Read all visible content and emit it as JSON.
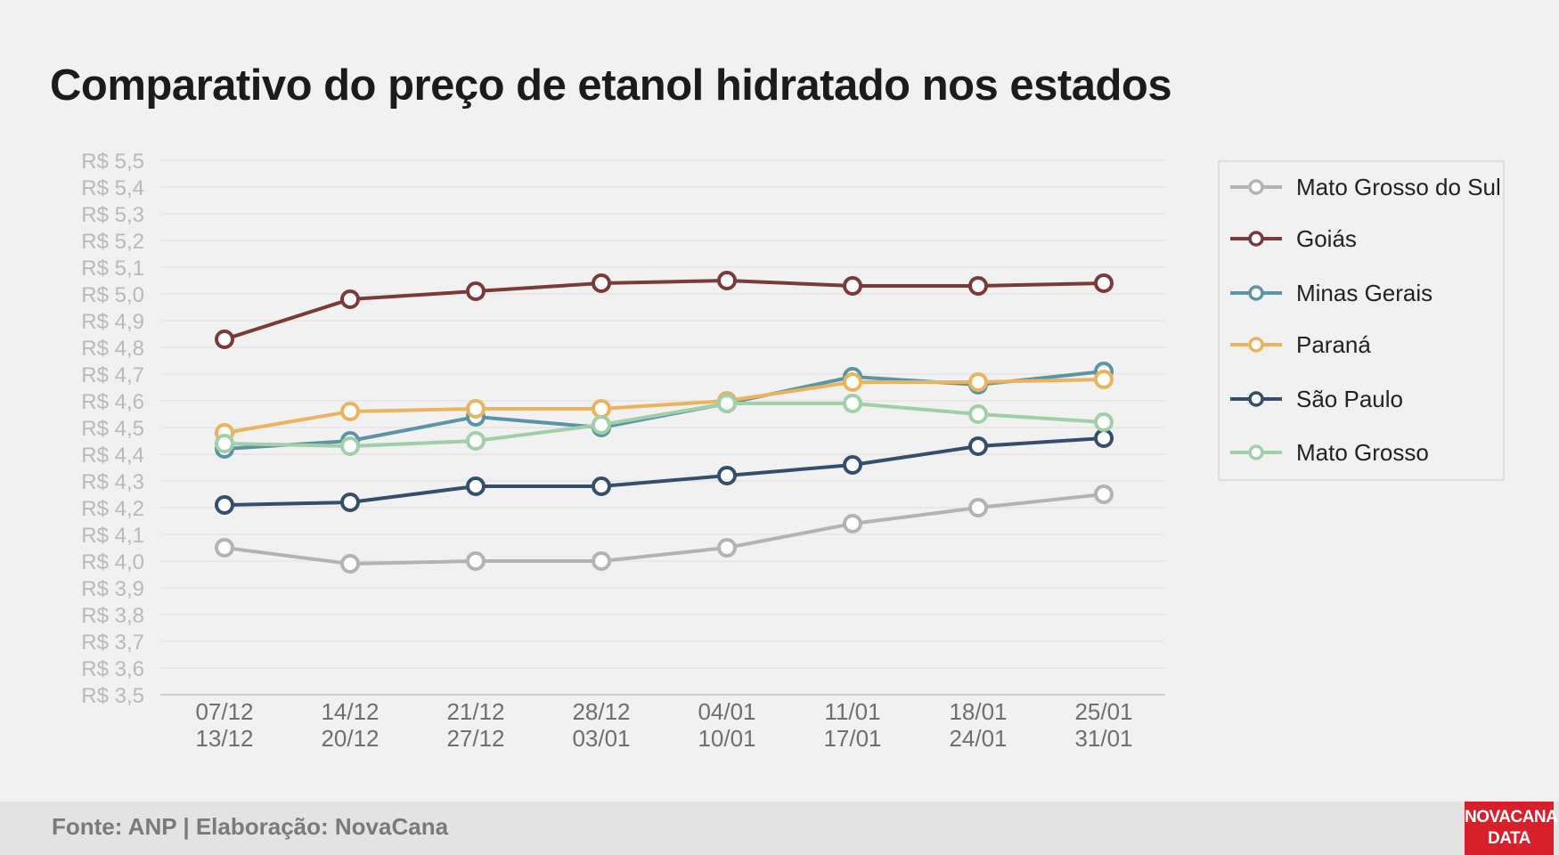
{
  "title": "Comparativo do preço de etanol hidratado nos estados",
  "footer": {
    "source": "Fonte: ANP | Elaboração: NovaCana",
    "logo_line1": "NOVACANA",
    "logo_line2": "DATA"
  },
  "chart_data": {
    "type": "line",
    "title": "Comparativo do preço de etanol hidratado nos estados",
    "xlabel": "",
    "ylabel": "",
    "categories": [
      [
        "07/12",
        "13/12"
      ],
      [
        "14/12",
        "20/12"
      ],
      [
        "21/12",
        "27/12"
      ],
      [
        "28/12",
        "03/01"
      ],
      [
        "04/01",
        "10/01"
      ],
      [
        "11/01",
        "17/01"
      ],
      [
        "18/01",
        "24/01"
      ],
      [
        "25/01",
        "31/01"
      ]
    ],
    "y_ticks": [
      "R$ 3,5",
      "R$ 3,6",
      "R$ 3,7",
      "R$ 3,8",
      "R$ 3,9",
      "R$ 4,0",
      "R$ 4,1",
      "R$ 4,2",
      "R$ 4,3",
      "R$ 4,4",
      "R$ 4,5",
      "R$ 4,6",
      "R$ 4,7",
      "R$ 4,8",
      "R$ 4,9",
      "R$ 5,0",
      "R$ 5,1",
      "R$ 5,2",
      "R$ 5,3",
      "R$ 5,4",
      "R$ 5,5"
    ],
    "ylim": [
      3.5,
      5.5
    ],
    "grid": true,
    "legend_position": "right",
    "series": [
      {
        "name": "Mato Grosso do Sul",
        "color": "#b3b3b3",
        "values": [
          4.05,
          3.99,
          4.0,
          4.0,
          4.05,
          4.14,
          4.2,
          4.25
        ]
      },
      {
        "name": "Goiás",
        "color": "#7b3a3a",
        "values": [
          4.83,
          4.98,
          5.01,
          5.04,
          5.05,
          5.03,
          5.03,
          5.04
        ]
      },
      {
        "name": "Minas Gerais",
        "color": "#5b95a5",
        "values": [
          4.42,
          4.45,
          4.54,
          4.5,
          4.59,
          4.69,
          4.66,
          4.71
        ]
      },
      {
        "name": "Paraná",
        "color": "#ebb35e",
        "values": [
          4.48,
          4.56,
          4.57,
          4.57,
          4.6,
          4.67,
          4.67,
          4.68
        ]
      },
      {
        "name": "São Paulo",
        "color": "#344e6c",
        "values": [
          4.21,
          4.22,
          4.28,
          4.28,
          4.32,
          4.36,
          4.43,
          4.46
        ]
      },
      {
        "name": "Mato Grosso",
        "color": "#a0cfa9",
        "values": [
          4.44,
          4.43,
          4.45,
          4.51,
          4.59,
          4.59,
          4.55,
          4.52
        ]
      }
    ]
  }
}
